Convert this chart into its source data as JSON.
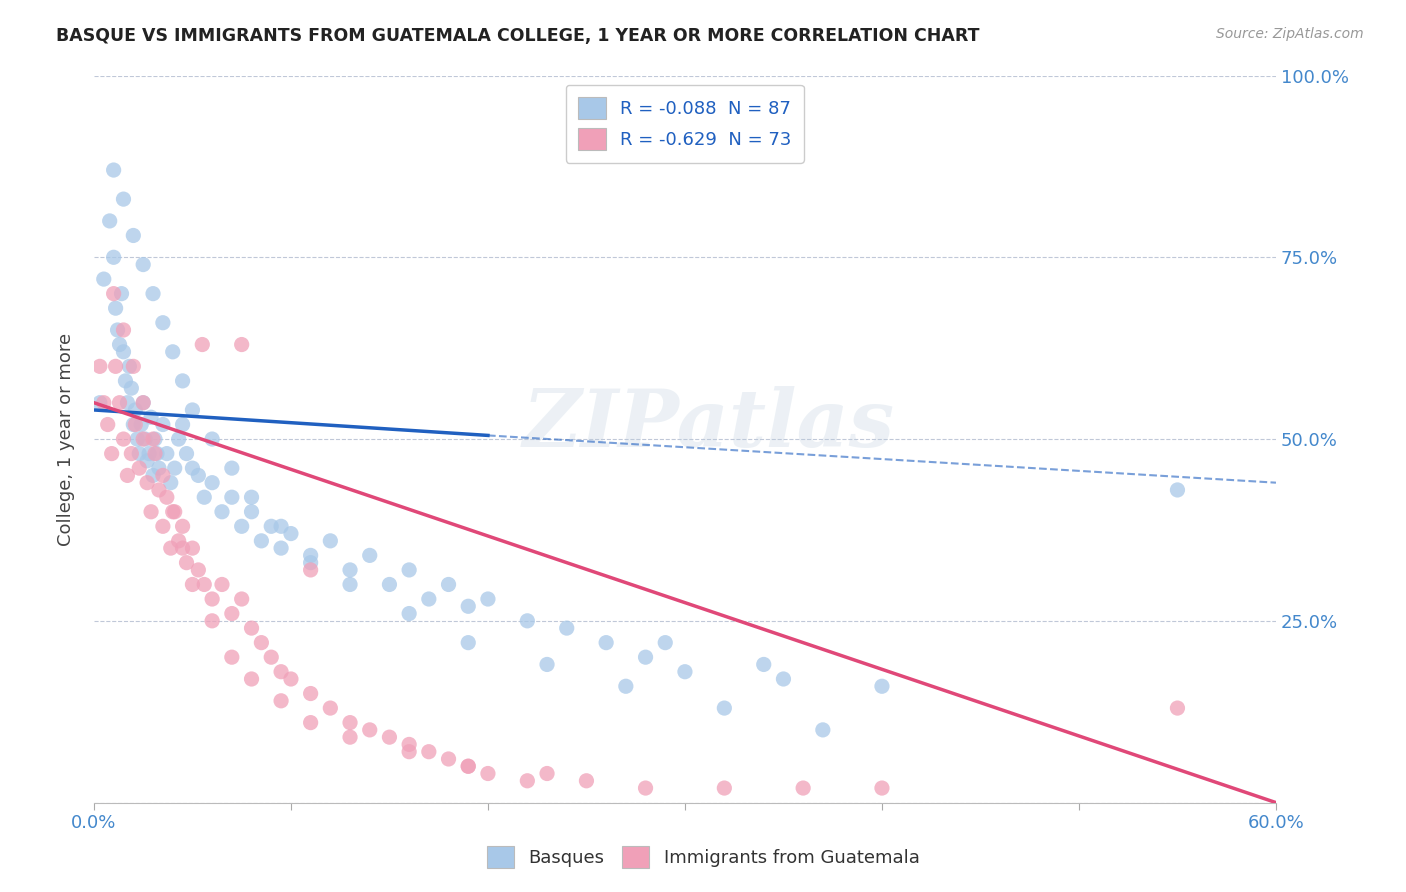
{
  "title": "BASQUE VS IMMIGRANTS FROM GUATEMALA COLLEGE, 1 YEAR OR MORE CORRELATION CHART",
  "source": "Source: ZipAtlas.com",
  "ylabel": "College, 1 year or more",
  "watermark": "ZIPatlas",
  "legend_entry1": "R = -0.088  N = 87",
  "legend_entry2": "R = -0.629  N = 73",
  "blue_color": "#a8c8e8",
  "pink_color": "#f0a0b8",
  "blue_line_color": "#2060c0",
  "pink_line_color": "#e04878",
  "background_color": "#ffffff",
  "grid_color": "#c0c8d8",
  "axis_label_color": "#4488cc",
  "blue_scatter_x": [
    0.3,
    0.5,
    0.8,
    1.0,
    1.1,
    1.2,
    1.3,
    1.4,
    1.5,
    1.6,
    1.7,
    1.8,
    1.9,
    2.0,
    2.1,
    2.2,
    2.3,
    2.4,
    2.5,
    2.6,
    2.7,
    2.8,
    2.9,
    3.0,
    3.1,
    3.2,
    3.3,
    3.5,
    3.7,
    3.9,
    4.1,
    4.3,
    4.5,
    4.7,
    5.0,
    5.3,
    5.6,
    6.0,
    6.5,
    7.0,
    7.5,
    8.0,
    8.5,
    9.0,
    9.5,
    10.0,
    11.0,
    12.0,
    13.0,
    14.0,
    15.0,
    16.0,
    17.0,
    18.0,
    19.0,
    20.0,
    22.0,
    24.0,
    26.0,
    28.0,
    30.0,
    35.0,
    40.0,
    1.0,
    1.5,
    2.0,
    2.5,
    3.0,
    3.5,
    4.0,
    4.5,
    5.0,
    6.0,
    7.0,
    8.0,
    9.5,
    11.0,
    13.0,
    16.0,
    19.0,
    23.0,
    27.0,
    32.0,
    37.0,
    29.0,
    34.0,
    55.0
  ],
  "blue_scatter_y": [
    55,
    72,
    80,
    75,
    68,
    65,
    63,
    70,
    62,
    58,
    55,
    60,
    57,
    52,
    54,
    50,
    48,
    52,
    55,
    50,
    47,
    48,
    53,
    45,
    50,
    48,
    46,
    52,
    48,
    44,
    46,
    50,
    52,
    48,
    46,
    45,
    42,
    44,
    40,
    42,
    38,
    40,
    36,
    38,
    35,
    37,
    33,
    36,
    32,
    34,
    30,
    32,
    28,
    30,
    27,
    28,
    25,
    24,
    22,
    20,
    18,
    17,
    16,
    87,
    83,
    78,
    74,
    70,
    66,
    62,
    58,
    54,
    50,
    46,
    42,
    38,
    34,
    30,
    26,
    22,
    19,
    16,
    13,
    10,
    22,
    19,
    43
  ],
  "pink_scatter_x": [
    0.3,
    0.5,
    0.7,
    0.9,
    1.1,
    1.3,
    1.5,
    1.7,
    1.9,
    2.1,
    2.3,
    2.5,
    2.7,
    2.9,
    3.1,
    3.3,
    3.5,
    3.7,
    3.9,
    4.1,
    4.3,
    4.5,
    4.7,
    5.0,
    5.3,
    5.6,
    6.0,
    6.5,
    7.0,
    7.5,
    8.0,
    8.5,
    9.0,
    9.5,
    10.0,
    11.0,
    12.0,
    13.0,
    14.0,
    15.0,
    16.0,
    17.0,
    18.0,
    19.0,
    20.0,
    22.0,
    25.0,
    28.0,
    32.0,
    36.0,
    40.0,
    55.0,
    1.0,
    1.5,
    2.0,
    2.5,
    3.0,
    3.5,
    4.0,
    4.5,
    5.0,
    6.0,
    7.0,
    8.0,
    9.5,
    11.0,
    13.0,
    16.0,
    19.0,
    23.0,
    5.5,
    7.5,
    11.0
  ],
  "pink_scatter_y": [
    60,
    55,
    52,
    48,
    60,
    55,
    50,
    45,
    48,
    52,
    46,
    50,
    44,
    40,
    48,
    43,
    38,
    42,
    35,
    40,
    36,
    38,
    33,
    35,
    32,
    30,
    28,
    30,
    26,
    28,
    24,
    22,
    20,
    18,
    17,
    15,
    13,
    11,
    10,
    9,
    8,
    7,
    6,
    5,
    4,
    3,
    3,
    2,
    2,
    2,
    2,
    13,
    70,
    65,
    60,
    55,
    50,
    45,
    40,
    35,
    30,
    25,
    20,
    17,
    14,
    11,
    9,
    7,
    5,
    4,
    63,
    63,
    32
  ],
  "blue_line_solid": {
    "x0": 0.0,
    "x1": 20.0,
    "y0": 54.0,
    "y1": 50.5
  },
  "blue_line_dashed": {
    "x0": 20.0,
    "x1": 60.0,
    "y0": 50.5,
    "y1": 44.0
  },
  "pink_line": {
    "x0": 0.0,
    "x1": 60.0,
    "y0": 55.0,
    "y1": 0.0
  },
  "xmin": 0.0,
  "xmax": 60.0,
  "ymin": 0.0,
  "ymax": 100.0,
  "xticks": [
    0.0,
    10.0,
    20.0,
    30.0,
    40.0,
    50.0,
    60.0
  ],
  "yticks": [
    0.0,
    25.0,
    50.0,
    75.0,
    100.0
  ],
  "xtick_labels_show": [
    "0.0%",
    "60.0%"
  ],
  "ytick_labels_show": [
    "25.0%",
    "50.0%",
    "75.0%",
    "100.0%"
  ]
}
